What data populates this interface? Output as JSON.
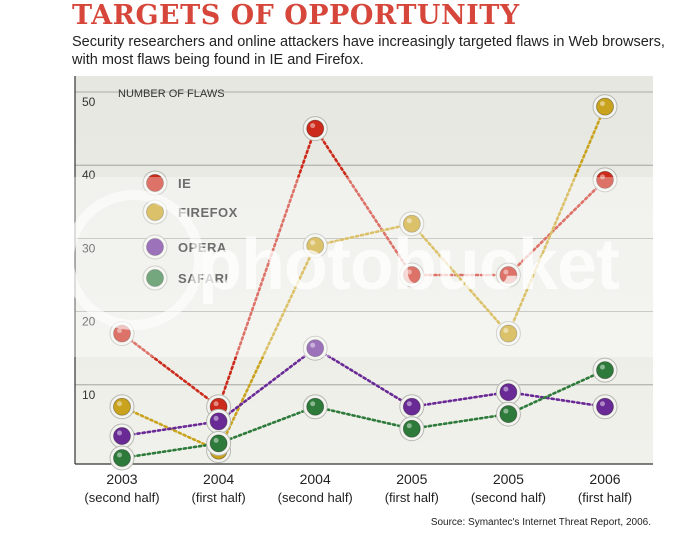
{
  "chart_data": {
    "type": "line",
    "title": "TARGETS OF OPPORTUNITY",
    "subtitle": "Security researchers and online attackers have increasingly targeted flaws in Web browsers, with most flaws being found in IE and Firefox.",
    "ylabel": "NUMBER OF FLAWS",
    "xlabel": "",
    "ylim": [
      0,
      50
    ],
    "yticks": [
      10,
      20,
      30,
      40,
      50
    ],
    "grid": true,
    "legend_position": "upper-left",
    "categories": [
      {
        "year": "2003",
        "period": "(second half)"
      },
      {
        "year": "2004",
        "period": "(first half)"
      },
      {
        "year": "2004",
        "period": "(second half)"
      },
      {
        "year": "2005",
        "period": "(first half)"
      },
      {
        "year": "2005",
        "period": "(second half)"
      },
      {
        "year": "2006",
        "period": "(first half)"
      }
    ],
    "series": [
      {
        "name": "IE",
        "color": "#cc2a1a",
        "values": [
          17,
          7,
          45,
          25,
          25,
          38
        ]
      },
      {
        "name": "FIREFOX",
        "color": "#c9a31e",
        "values": [
          7,
          1,
          29,
          32,
          17,
          48
        ]
      },
      {
        "name": "OPERA",
        "color": "#6a2a96",
        "values": [
          3,
          5,
          15,
          7,
          9,
          7
        ]
      },
      {
        "name": "SAFARI",
        "color": "#2d7a3a",
        "values": [
          0,
          2,
          7,
          4,
          6,
          12
        ]
      }
    ],
    "source": "Source: Symantec's Internet Threat Report, 2006."
  },
  "watermark": "photobucket"
}
